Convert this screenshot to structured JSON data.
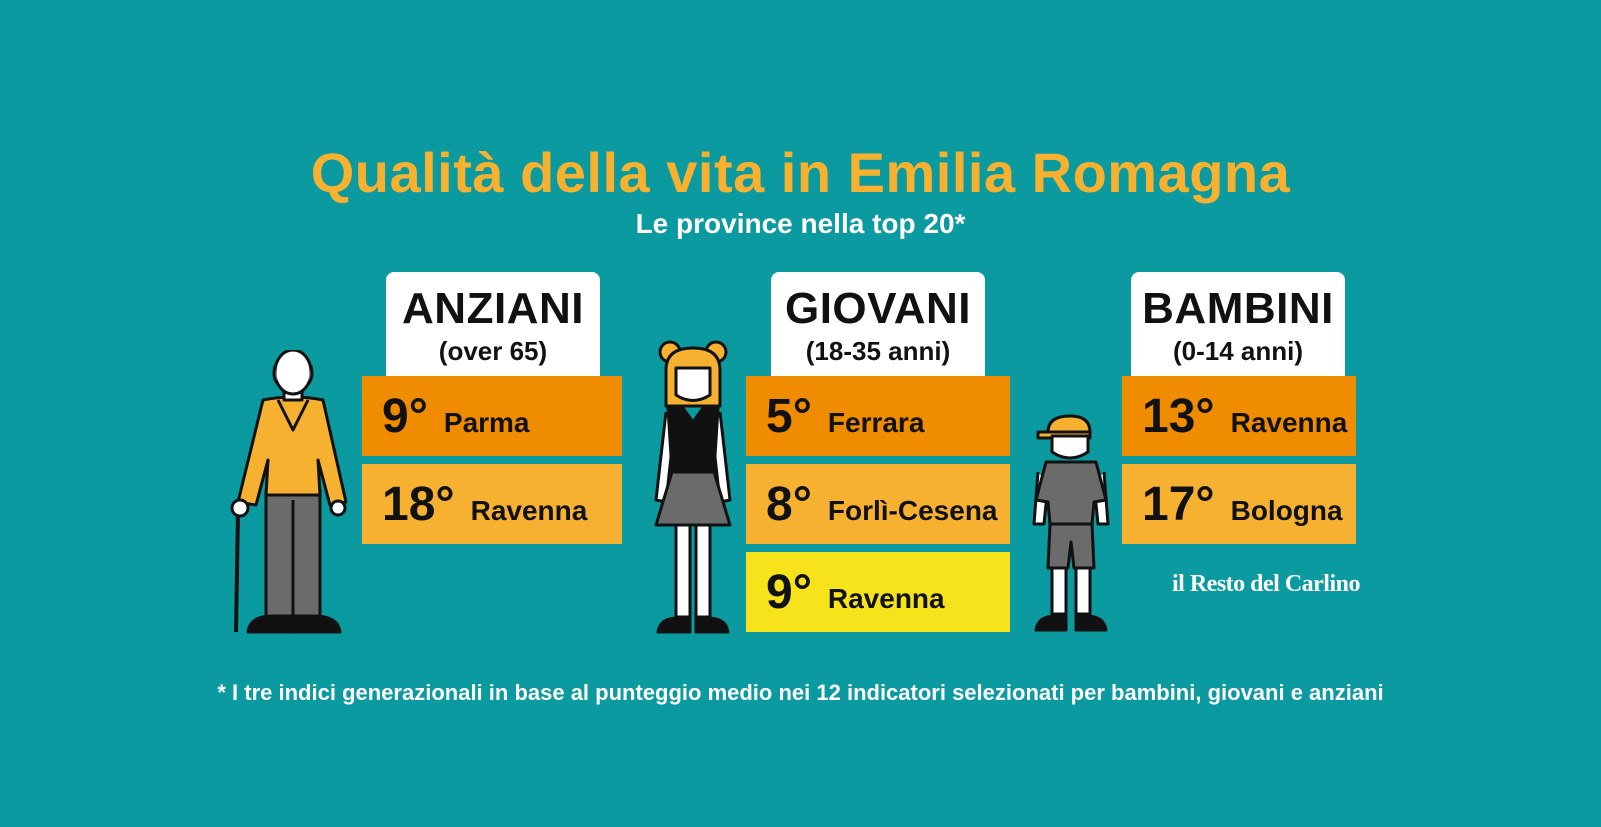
{
  "title": "Qualità della vita in Emilia Romagna",
  "subtitle": "Le province nella top 20*",
  "groups": [
    {
      "name": "ANZIANI",
      "range": "(over 65)",
      "figure_icon": "elderly-man-icon",
      "ranks": [
        {
          "position": "9°",
          "province": "Parma",
          "color": "#ef8c00"
        },
        {
          "position": "18°",
          "province": "Ravenna",
          "color": "#f7b131"
        }
      ]
    },
    {
      "name": "GIOVANI",
      "range": "(18-35 anni)",
      "figure_icon": "young-woman-icon",
      "ranks": [
        {
          "position": "5°",
          "province": "Ferrara",
          "color": "#ef8c00"
        },
        {
          "position": "8°",
          "province": "Forlì-Cesena",
          "color": "#f7b131"
        },
        {
          "position": "9°",
          "province": "Ravenna",
          "color": "#f6e31c"
        }
      ]
    },
    {
      "name": "BAMBINI",
      "range": "(0-14 anni)",
      "figure_icon": "child-icon",
      "ranks": [
        {
          "position": "13°",
          "province": "Ravenna",
          "color": "#ef8c00"
        },
        {
          "position": "17°",
          "province": "Bologna",
          "color": "#f7b131"
        }
      ]
    }
  ],
  "footnote": "* I tre indici generazionali in base al punteggio medio nei 12 indicatori selezionati per bambini,  giovani e anziani",
  "logo": "il Resto del Carlino",
  "colors": {
    "background": "#0a9aa0",
    "title": "#f7b12f"
  }
}
